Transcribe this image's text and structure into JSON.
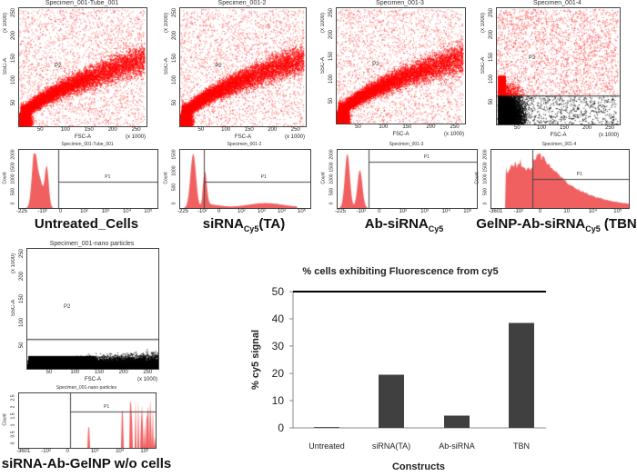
{
  "scatter_panels": [
    {
      "title": "Specimen_001-Tube_001",
      "ylabel": "SSC-A",
      "xlabel": "FSC-A",
      "scale": "(x 1000)",
      "gate": "P2",
      "kind": "band"
    },
    {
      "title": "Specimen_001-2",
      "ylabel": "SSC-A",
      "xlabel": "FSC-A",
      "scale": "(x 1000)",
      "gate": "P2",
      "kind": "band"
    },
    {
      "title": "Specimen_001-3",
      "ylabel": "SSC-A",
      "xlabel": "FSC-A",
      "scale": "(x 1000)",
      "gate": "P2",
      "kind": "band"
    },
    {
      "title": "Specimen_001-4",
      "ylabel": "SSC-A",
      "xlabel": "FSC-A",
      "scale": "(x 1000)",
      "gate": "P2",
      "kind": "gated"
    },
    {
      "title": "Specimen_001-nano particles",
      "ylabel": "SSC-A",
      "xlabel": "FSC-A",
      "scale": "(x 1000)",
      "gate": "P2",
      "kind": "nano"
    }
  ],
  "scatter_ticks": [
    "50",
    "100",
    "150",
    "200",
    "250"
  ],
  "histogram_panels": [
    {
      "title": "Specimen_001-Tube_001",
      "ylabel": "Count",
      "gate": "P1",
      "xticks": [
        "-225",
        "-10²",
        "0",
        "10²",
        "10³",
        "10⁴",
        "10⁵"
      ],
      "yticks": [
        "0",
        "500",
        "1000",
        "1500",
        "2000"
      ]
    },
    {
      "title": "Specimen_001-2",
      "ylabel": "Count",
      "gate": "P1",
      "xticks": [
        "-225",
        "-10²",
        "0",
        "10²",
        "10³",
        "10⁴",
        "10⁵"
      ],
      "yticks": [
        "0",
        "500",
        "1000",
        "1500"
      ]
    },
    {
      "title": "Specimen_001-3",
      "ylabel": "Count",
      "gate": "P1",
      "xticks": [
        "-225",
        "-10²",
        "0",
        "10²",
        "10³",
        "10⁴",
        "10⁵"
      ],
      "yticks": [
        "0",
        "500",
        "1000",
        "1500",
        "2000"
      ]
    },
    {
      "title": "Specimen_001-4",
      "ylabel": "Count",
      "gate": "P1",
      "xticks": [
        "-3601",
        "-10²",
        "0",
        "10",
        "10⁴",
        "10⁵"
      ],
      "yticks": [
        "0",
        "500",
        "1000",
        "1500",
        "2000"
      ]
    },
    {
      "title": "Specimen_001-nano particles",
      "ylabel": "Count",
      "gate": "P1",
      "xticks": [
        "-3601",
        "-10²",
        "0",
        "10³",
        "10⁴",
        "10⁵"
      ],
      "yticks": [
        "0",
        "0.5",
        "1",
        "1.5",
        "2",
        "2.5"
      ]
    }
  ],
  "captions": [
    {
      "main": "Untreated_Cells",
      "sub": "",
      "suffix": ""
    },
    {
      "main": "siRNA",
      "sub": "Cy5",
      "suffix": "(TA)"
    },
    {
      "main": "Ab-siRNA",
      "sub": "Cy5",
      "suffix": ""
    },
    {
      "main": "GelNP-Ab-siRNA",
      "sub": "Cy5",
      "suffix": " (TBN)"
    },
    {
      "main": "siRNA-Ab-GelNP w/o cells",
      "sub": "",
      "suffix": ""
    }
  ],
  "colors": {
    "events": "#ff0000",
    "ungated": "#000000",
    "bar": "#404040",
    "hist": "#f06060"
  },
  "chart_data": {
    "type": "bar",
    "title": "% cells exhibiting Fluorescence from cy5",
    "xlabel": "Constructs",
    "ylabel": "% cy5 signal",
    "categories": [
      "Untreated",
      "siRNA(TA)",
      "Ab-siRNA",
      "TBN"
    ],
    "values": [
      0.3,
      19.5,
      4.5,
      38.5
    ],
    "ylim": [
      0,
      50
    ],
    "yticks": [
      "0",
      "10",
      "20",
      "30",
      "40",
      "50"
    ],
    "grid": false
  }
}
